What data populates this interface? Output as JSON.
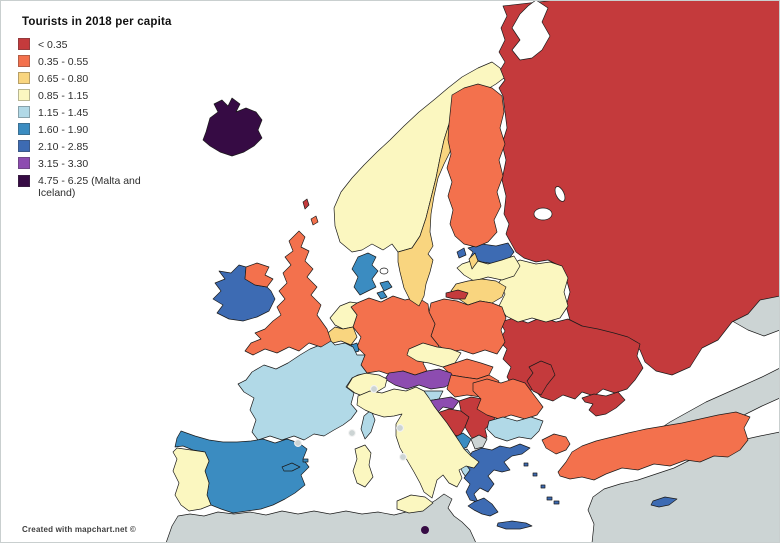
{
  "legend": {
    "title": "Tourists in 2018 per capita",
    "items": [
      {
        "label": "< 0.35",
        "color": "#c43a3c"
      },
      {
        "label": "0.35 - 0.55",
        "color": "#f3714d"
      },
      {
        "label": "0.65 - 0.80",
        "color": "#f9d57f"
      },
      {
        "label": "0.85 - 1.15",
        "color": "#fbf7c0"
      },
      {
        "label": "1.15 - 1.45",
        "color": "#b1d9e7"
      },
      {
        "label": "1.60 - 1.90",
        "color": "#3b8cc1"
      },
      {
        "label": "2.10 - 2.85",
        "color": "#3d6bb3"
      },
      {
        "label": "3.15 - 3.30",
        "color": "#8d4cb0"
      },
      {
        "label": "4.75 - 6.25 (Malta and Iceland)",
        "color": "#360b44"
      }
    ]
  },
  "attribution": "Created with mapchart.net ©",
  "map": {
    "sea_color": "#ffffff",
    "border_color": "#1b1b1b",
    "no_data_color": "#ccd4d4",
    "microstate_dot_ring": "#f2f2f2",
    "categories": [
      {
        "label": "< 0.35",
        "color": "#c43a3c"
      },
      {
        "label": "0.35 - 0.55",
        "color": "#f3714d"
      },
      {
        "label": "0.65 - 0.80",
        "color": "#f9d57f"
      },
      {
        "label": "0.85 - 1.15",
        "color": "#fbf7c0"
      },
      {
        "label": "1.15 - 1.45",
        "color": "#b1d9e7"
      },
      {
        "label": "1.60 - 1.90",
        "color": "#3b8cc1"
      },
      {
        "label": "2.10 - 2.85",
        "color": "#3d6bb3"
      },
      {
        "label": "3.15 - 3.30",
        "color": "#8d4cb0"
      },
      {
        "label": "4.75 - 6.25",
        "color": "#360b44"
      }
    ],
    "countries": {
      "iceland": 8,
      "malta": 8,
      "austria": 7,
      "croatia": 7,
      "ireland": 6,
      "estonia": 6,
      "greece": 6,
      "cyprus": 6,
      "spain": 5,
      "denmark": 5,
      "luxembourg": 5,
      "montenegro": 5,
      "france": 4,
      "bulgaria": 4,
      "albania": 4,
      "slovenia": 4,
      "norway": 3,
      "latvia": 3,
      "belarus": 3,
      "czechia": 3,
      "netherlands": 3,
      "switzerland": 3,
      "italy": 3,
      "portugal": 3,
      "sweden": 2,
      "lithuania": 2,
      "belgium": 2,
      "united_kingdom": 1,
      "germany": 1,
      "poland": 1,
      "slovakia": 1,
      "hungary": 1,
      "romania": 1,
      "finland": 1,
      "turkey": 1,
      "russia": 0,
      "ukraine": 0,
      "moldova": 0,
      "serbia": 0,
      "bosnia_and_herzegovina": 0,
      "north_macedonia": 0,
      "kaliningrad": 0,
      "crimea": 0,
      "faroe_islands": 0,
      "kosovo": "no_data",
      "monaco": "no_data",
      "liechtenstein": "no_data",
      "san_marino": "no_data",
      "vatican_city": "no_data",
      "andorra": "no_data",
      "north_africa": "no_data",
      "middle_east": "no_data",
      "caucasus": "no_data",
      "kazakhstan": "no_data"
    }
  }
}
